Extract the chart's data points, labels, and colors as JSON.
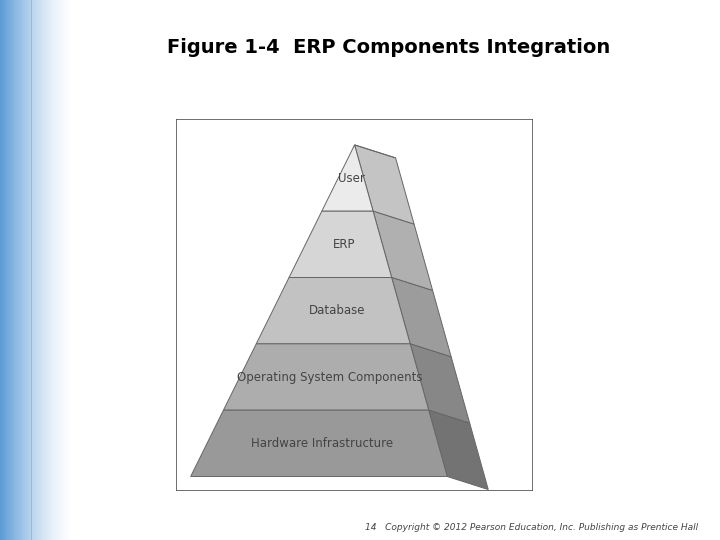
{
  "title": "Figure 1-4  ERP Components Integration",
  "title_fontsize": 14,
  "title_fontweight": "bold",
  "copyright": "14   Copyright © 2012 Pearson Education, Inc. Publishing as Prentice Hall",
  "copyright_fontsize": 6.5,
  "layers": [
    {
      "label": "User",
      "shade": 0.92
    },
    {
      "label": "ERP",
      "shade": 0.84
    },
    {
      "label": "Database",
      "shade": 0.76
    },
    {
      "label": "Operating System Components",
      "shade": 0.68
    },
    {
      "label": "Hardware Infrastructure",
      "shade": 0.6
    }
  ],
  "bg_left_color": "#5b9bd5",
  "box_facecolor": "#ffffff",
  "box_edgecolor": "#555555",
  "label_fontsize": 8.5,
  "label_color": "#444444"
}
